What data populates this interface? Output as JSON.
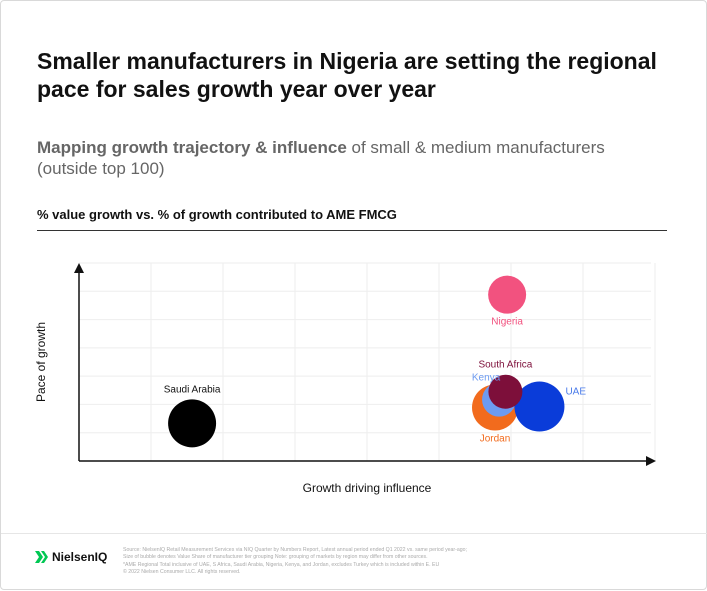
{
  "title": "Smaller manufacturers in Nigeria are setting the regional pace for sales growth year over year",
  "subtitle_bold": "Mapping growth trajectory & influence",
  "subtitle_rest": " of small & medium manufacturers (outside top 100)",
  "chart_header": "% value growth vs. % of growth contributed to AME FMCG",
  "chart_data": {
    "type": "scatter",
    "xlabel": "Growth driving influence",
    "ylabel": "Pace of growth",
    "xlim": [
      0,
      100
    ],
    "ylim": [
      0,
      100
    ],
    "grid": true,
    "legend": "none",
    "points": [
      {
        "label": "Saudi Arabia",
        "x": 19.6,
        "y": 19,
        "size": 24,
        "color": "#000000",
        "label_color": "#111111",
        "label_pos": "above"
      },
      {
        "label": "Jordan",
        "x": 72.1,
        "y": 27,
        "size": 23,
        "color": "#f26b1d",
        "label_color": "#f26b1d",
        "label_pos": "below"
      },
      {
        "label": "Kenya",
        "x": 72.8,
        "y": 31,
        "size": 17,
        "color": "#6d9bf1",
        "label_color": "#6d9bf1",
        "label_pos": "above-left"
      },
      {
        "label": "UAE",
        "x": 79.8,
        "y": 27.5,
        "size": 25,
        "color": "#0a3cd9",
        "label_color": "#4a7bea",
        "label_pos": "right"
      },
      {
        "label": "South Africa",
        "x": 73.9,
        "y": 35,
        "size": 17,
        "color": "#7d0f3a",
        "label_color": "#7d0f3a",
        "label_pos": "above"
      },
      {
        "label": "Nigeria",
        "x": 74.2,
        "y": 84,
        "size": 19,
        "color": "#f2527f",
        "label_color": "#f2527f",
        "label_pos": "below"
      }
    ]
  },
  "footer": {
    "brand": "NielsenIQ",
    "logo_icon": "nielseniq-logo-icon",
    "brand_color": "#00c853",
    "notes": [
      "Source: NielsenIQ Retail Measurement Services via NIQ Quarter by Numbers Report, Latest annual period ended Q1 2022 vs. same period year-ago;",
      "Size of bubble denotes Value Share of manufacturer tier grouping Note: grouping of markets by region may differ from other sources.",
      "*AME Regional Total inclusive of UAE, S Africa, Saudi Arabia, Nigeria, Kenya, and Jordan, excludes Turkey which is included within E. EU",
      "© 2022 Nielsen Consumer LLC. All rights reserved."
    ]
  }
}
